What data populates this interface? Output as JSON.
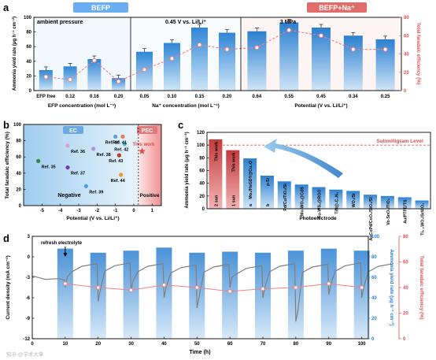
{
  "watermark": "知乎 @学术大拿",
  "panel_letters": {
    "a": "a",
    "b": "b",
    "c": "c",
    "d": "d"
  },
  "colors": {
    "bar_light": "#a6d2f2",
    "bar_blue": "#3f90d8",
    "bar_red": "#cc4a4a",
    "fe_line": "#f08080",
    "fe_axis": "#e05050",
    "trace": "#7f7f7f",
    "ec_bg": "#b9dcf3",
    "pec_bg": "#f7c6c6",
    "header_blue": "#68aef0",
    "header_red": "#e06c6c"
  },
  "chart_data": [
    {
      "id": "a",
      "type": "bar",
      "headers": {
        "left": "BEFP",
        "right": "BEFP+Na⁺"
      },
      "annotations": [
        "ambient pressure",
        "0.45 V vs. Li/Li⁺",
        "3 MPa"
      ],
      "ylabel": "Ammonia yield rate (μg h⁻¹ cm⁻²)",
      "y2label": "Total faradaic efficiency (%)",
      "ylim": [
        0,
        100
      ],
      "y2lim": [
        0,
        80
      ],
      "yticks": [
        "0",
        "20",
        "40",
        "60",
        "80",
        "100"
      ],
      "y2ticks": [
        "0",
        "20",
        "40",
        "60",
        "80"
      ],
      "groups": [
        {
          "xlabel": "EFP concentration (mol L⁻¹)",
          "categories": [
            "EFP free",
            "0.12",
            "0.16",
            "0.20"
          ],
          "yield": [
            28,
            33,
            43,
            17
          ],
          "fe": [
            15,
            12,
            33,
            10
          ]
        },
        {
          "xlabel": "Na⁺ concentration (mol L⁻¹)",
          "categories": [
            "0.05",
            "0.10",
            "0.15",
            "0.20"
          ],
          "yield": [
            53,
            65,
            86,
            79
          ],
          "fe": [
            23,
            35,
            50,
            45
          ]
        },
        {
          "xlabel": "Potential (V vs. Li/Li⁺)",
          "categories": [
            "0.64",
            "0.55",
            "0.45",
            "0.34",
            "0.25"
          ],
          "yield": [
            81,
            93,
            86,
            75,
            70
          ],
          "fe": [
            47,
            66,
            60,
            45,
            45
          ]
        }
      ]
    },
    {
      "id": "b",
      "type": "scatter",
      "regions": [
        "EC",
        "PEC"
      ],
      "xlabel": "Potential (V vs. Li/Li⁺)",
      "ylabel": "Total faradaic efficiency (%)",
      "xlim": [
        -6,
        1.5
      ],
      "ylim": [
        0,
        100
      ],
      "xticks": [
        "-5",
        "-4",
        "-3",
        "-2",
        "-1",
        "0",
        "1"
      ],
      "yticks": [
        "0",
        "20",
        "40",
        "60",
        "80",
        "100"
      ],
      "zone_labels": [
        "Negative",
        "Positive"
      ],
      "points": [
        {
          "label": "Ref. 35",
          "x": -5.2,
          "y": 55,
          "color": "#2e8b3a"
        },
        {
          "label": "Ref. 36",
          "x": -3.6,
          "y": 74,
          "color": "#e79ad6"
        },
        {
          "label": "Ref. 37",
          "x": -3.6,
          "y": 47,
          "color": "#7b3c9a"
        },
        {
          "label": "Ref. 38",
          "x": -2.2,
          "y": 70,
          "color": "#b294d6"
        },
        {
          "label": "Ref. 39",
          "x": -2.6,
          "y": 24,
          "color": "#4aa3df"
        },
        {
          "label": "Ref. 40",
          "x": -1.0,
          "y": 85,
          "color": "#5aa0d8"
        },
        {
          "label": "Ref. 41",
          "x": -0.6,
          "y": 85,
          "color": "#e67e5a"
        },
        {
          "label": "Ref. 42",
          "x": -0.5,
          "y": 76,
          "color": "#3ab6cf"
        },
        {
          "label": "Ref. 43",
          "x": -0.8,
          "y": 62,
          "color": "#c0392b"
        },
        {
          "label": "Ref. 44",
          "x": -0.7,
          "y": 38,
          "color": "#e69b2f"
        },
        {
          "label": "This work",
          "x": 0.45,
          "y": 67,
          "color": "#e04b4b",
          "marker": "star"
        }
      ]
    },
    {
      "id": "c",
      "type": "bar",
      "xlabel": "Photoelectrode",
      "ylabel": "Ammonia yield rate (μg h⁻¹ cm⁻²)",
      "ylim": [
        0,
        120
      ],
      "yticks": [
        "0",
        "20",
        "40",
        "60",
        "80",
        "100",
        "120"
      ],
      "reference_line": {
        "y": 100,
        "label": "Submilligram Level"
      },
      "categories": [
        "This work",
        "This work",
        "Mo₂/HsGDY@Cu₂O",
        "p-Si",
        "Pd/Cu/TiO₂/Si",
        "Mo-WO₃@CdS",
        "Au-WS₂@RGO",
        "TiN@-C₃N₄",
        "WO₃/Si",
        "AuCoPd/CoO₂/SiO₂/Si",
        "Vo-SnO₂/TiO₂",
        "Au/PTFE/TS",
        "Ti₀.₅WO₃/SrWO₄"
      ],
      "sublabels": [
        "2 sun",
        "1 sun",
        "a",
        "b",
        "",
        "",
        "",
        "",
        "",
        "",
        "",
        "",
        ""
      ],
      "values": [
        109,
        92,
        79,
        52,
        43,
        38,
        34,
        30,
        28,
        22,
        20,
        18,
        13
      ]
    },
    {
      "id": "d",
      "type": "line",
      "annotation": "refresh electrolyte",
      "xlabel": "Time (h)",
      "ylabel": "Current density (mA cm⁻²)",
      "y2label": "Ammonia yield rate (μg h⁻¹ cm⁻²)",
      "y3label": "Total faradaic efficiency (%)",
      "xlim": [
        0,
        102
      ],
      "ylim": [
        -12,
        3
      ],
      "y2lim": [
        0,
        100
      ],
      "y3lim": [
        0,
        80
      ],
      "xticks": [
        "0",
        "10",
        "20",
        "30",
        "40",
        "50",
        "60",
        "70",
        "80",
        "90",
        "100"
      ],
      "yticks": [
        "-12",
        "-9",
        "-6",
        "-3",
        "0",
        "3"
      ],
      "y2ticks": [
        "0",
        "20",
        "40",
        "60",
        "80",
        "100"
      ],
      "y3ticks": [
        "0",
        "20",
        "40",
        "60",
        "80"
      ],
      "bar_x": [
        10,
        20,
        30,
        40,
        50,
        60,
        70,
        80,
        90,
        100
      ],
      "yield": [
        88,
        84,
        86,
        89,
        84,
        85,
        84,
        86,
        88,
        86
      ],
      "fe_x": [
        10,
        20,
        30,
        40,
        50,
        60,
        70,
        80,
        90,
        100
      ],
      "fe": [
        43,
        40,
        38,
        42,
        40,
        37,
        39,
        40,
        43,
        40
      ],
      "current_base": [
        -3.2,
        -1.0,
        -0.9,
        -1.0,
        -1.2,
        -1.1,
        -1.3,
        -1.0,
        -1.1,
        -0.9,
        -1.0
      ],
      "current_spike": [
        -4.5,
        -6.5,
        -5.0,
        -6.0,
        -7.5,
        -4.5,
        -6.0,
        -9.5,
        -5.5,
        -6.0
      ]
    }
  ]
}
